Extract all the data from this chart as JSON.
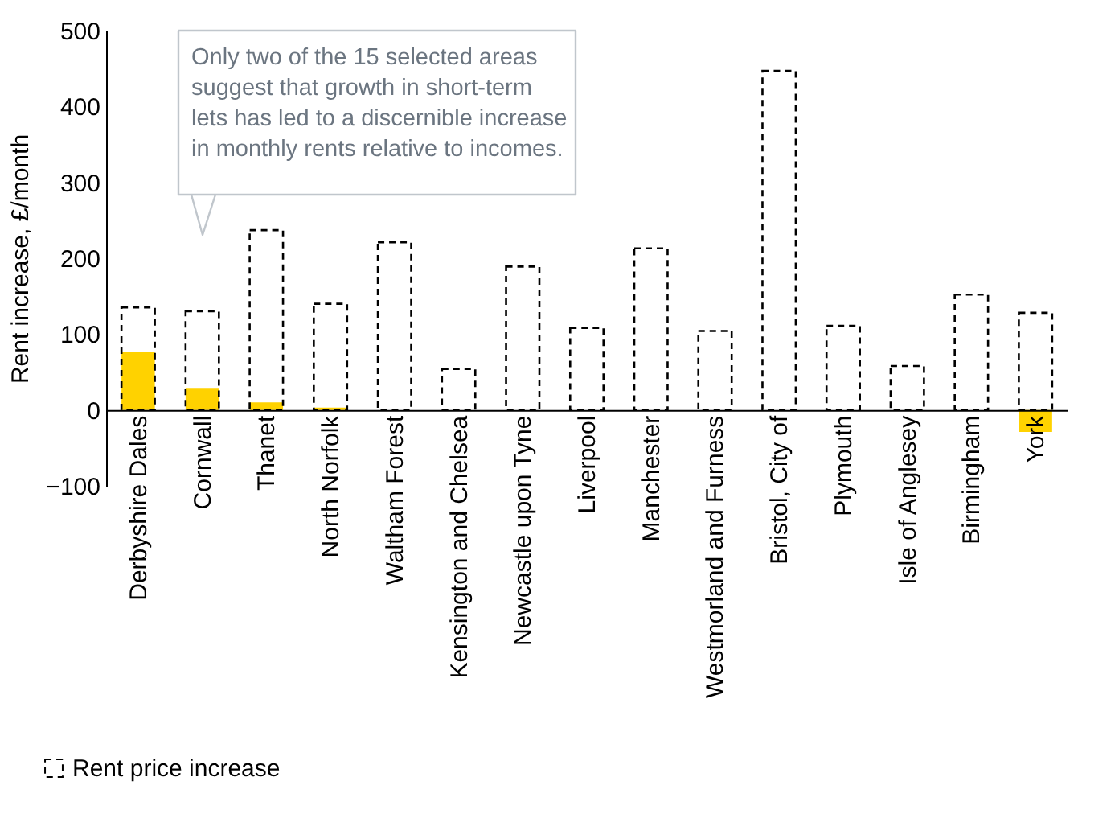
{
  "chart_data": {
    "type": "bar",
    "ylabel": "Rent increase, £/month",
    "categories": [
      "Derbyshire Dales",
      "Cornwall",
      "Thanet",
      "North Norfolk",
      "Waltham Forest",
      "Kensington and Chelsea",
      "Newcastle upon Tyne",
      "Liverpool",
      "Manchester",
      "Westmorland and Furness",
      "Bristol, City of",
      "Plymouth",
      "Isle of Anglesey",
      "Birmingham",
      "York"
    ],
    "series": [
      {
        "color": "#ffd200",
        "values": [
          76,
          29,
          10,
          3,
          null,
          null,
          null,
          null,
          null,
          null,
          null,
          null,
          null,
          null,
          -29
        ]
      },
      {
        "name": "Rent price increase",
        "color": "#000000",
        "line_style": "dashed",
        "values": [
          135,
          130,
          237,
          140,
          221,
          54,
          189,
          108,
          213,
          104,
          447,
          111,
          58,
          152,
          128
        ]
      }
    ],
    "ylim": [
      -100,
      500
    ],
    "yticks": [
      -100,
      0,
      100,
      200,
      300,
      400,
      500
    ],
    "grid": false,
    "legend": "bottom left",
    "annotations": [
      "Only two of the 15 selected areas\nsuggest that growth in short-term\nlets has led to a discernible increase\nin monthly rents relative to incomes."
    ]
  }
}
